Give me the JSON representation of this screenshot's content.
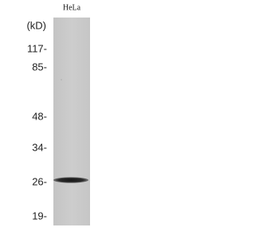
{
  "lane_label": "HeLa",
  "unit": "(kD)",
  "markers": [
    "117-",
    "85-",
    "48-",
    "34-",
    "26-",
    "19-"
  ]
}
